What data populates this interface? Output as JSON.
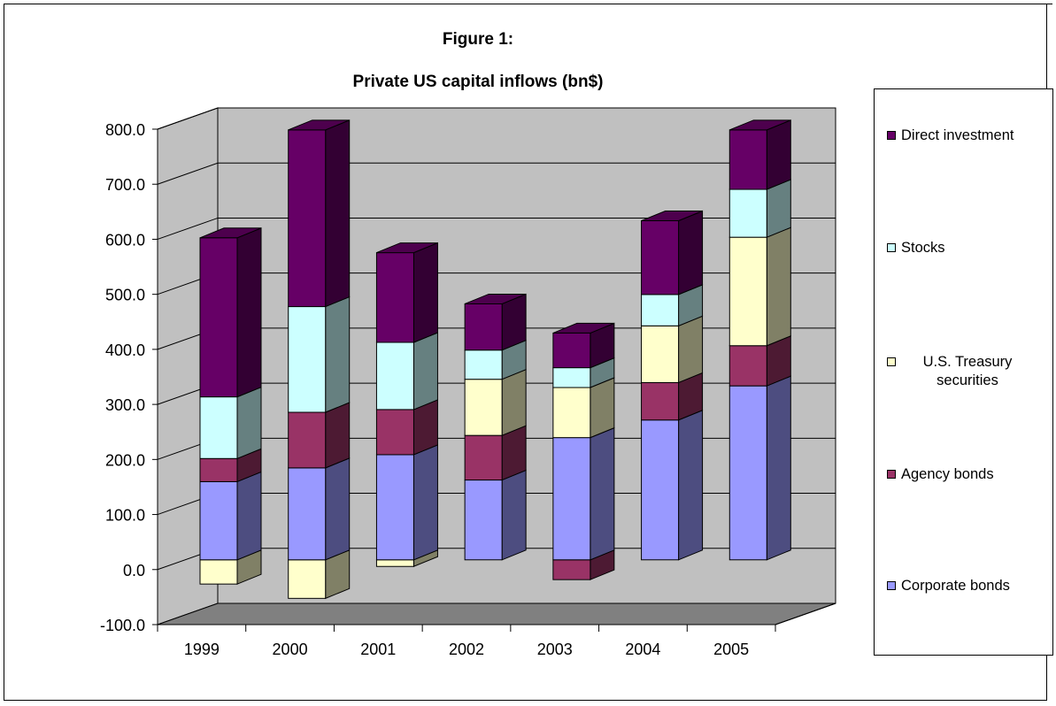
{
  "chart_data": {
    "type": "bar",
    "stacked": true,
    "style": "3d",
    "title": "Figure 1:",
    "subtitle": "Private US capital inflows (bn$)",
    "categories": [
      "1999",
      "2000",
      "2001",
      "2002",
      "2003",
      "2004",
      "2005"
    ],
    "ylim": [
      -100,
      800
    ],
    "yticks": [
      "-100.0",
      "0.0",
      "100.0",
      "200.0",
      "300.0",
      "400.0",
      "500.0",
      "600.0",
      "700.0",
      "800.0"
    ],
    "grid": true,
    "legend_position": "right",
    "series": [
      {
        "name": "Corporate bonds",
        "color": "#9999ff",
        "values": [
          142,
          167,
          191,
          145,
          222,
          254,
          316
        ]
      },
      {
        "name": "Agency bonds",
        "color": "#993366",
        "values": [
          42,
          101,
          82,
          81,
          -36,
          68,
          73
        ]
      },
      {
        "name": "U.S. Treasury securities",
        "color": "#ffffcc",
        "values": [
          -44,
          -70,
          -12,
          102,
          91,
          103,
          197
        ]
      },
      {
        "name": "Stocks",
        "color": "#ccffff",
        "values": [
          112,
          192,
          122,
          53,
          36,
          57,
          87
        ]
      },
      {
        "name": "Direct investment",
        "color": "#660066",
        "values": [
          289,
          321,
          163,
          84,
          63,
          134,
          108
        ]
      }
    ]
  },
  "legend": [
    {
      "label": "Direct investment",
      "color": "#660066"
    },
    {
      "label": "Stocks",
      "color": "#ccffff"
    },
    {
      "label": "U.S. Treasury securities",
      "color": "#ffffcc"
    },
    {
      "label": "Agency bonds",
      "color": "#993366"
    },
    {
      "label": "Corporate bonds",
      "color": "#9999ff"
    }
  ]
}
